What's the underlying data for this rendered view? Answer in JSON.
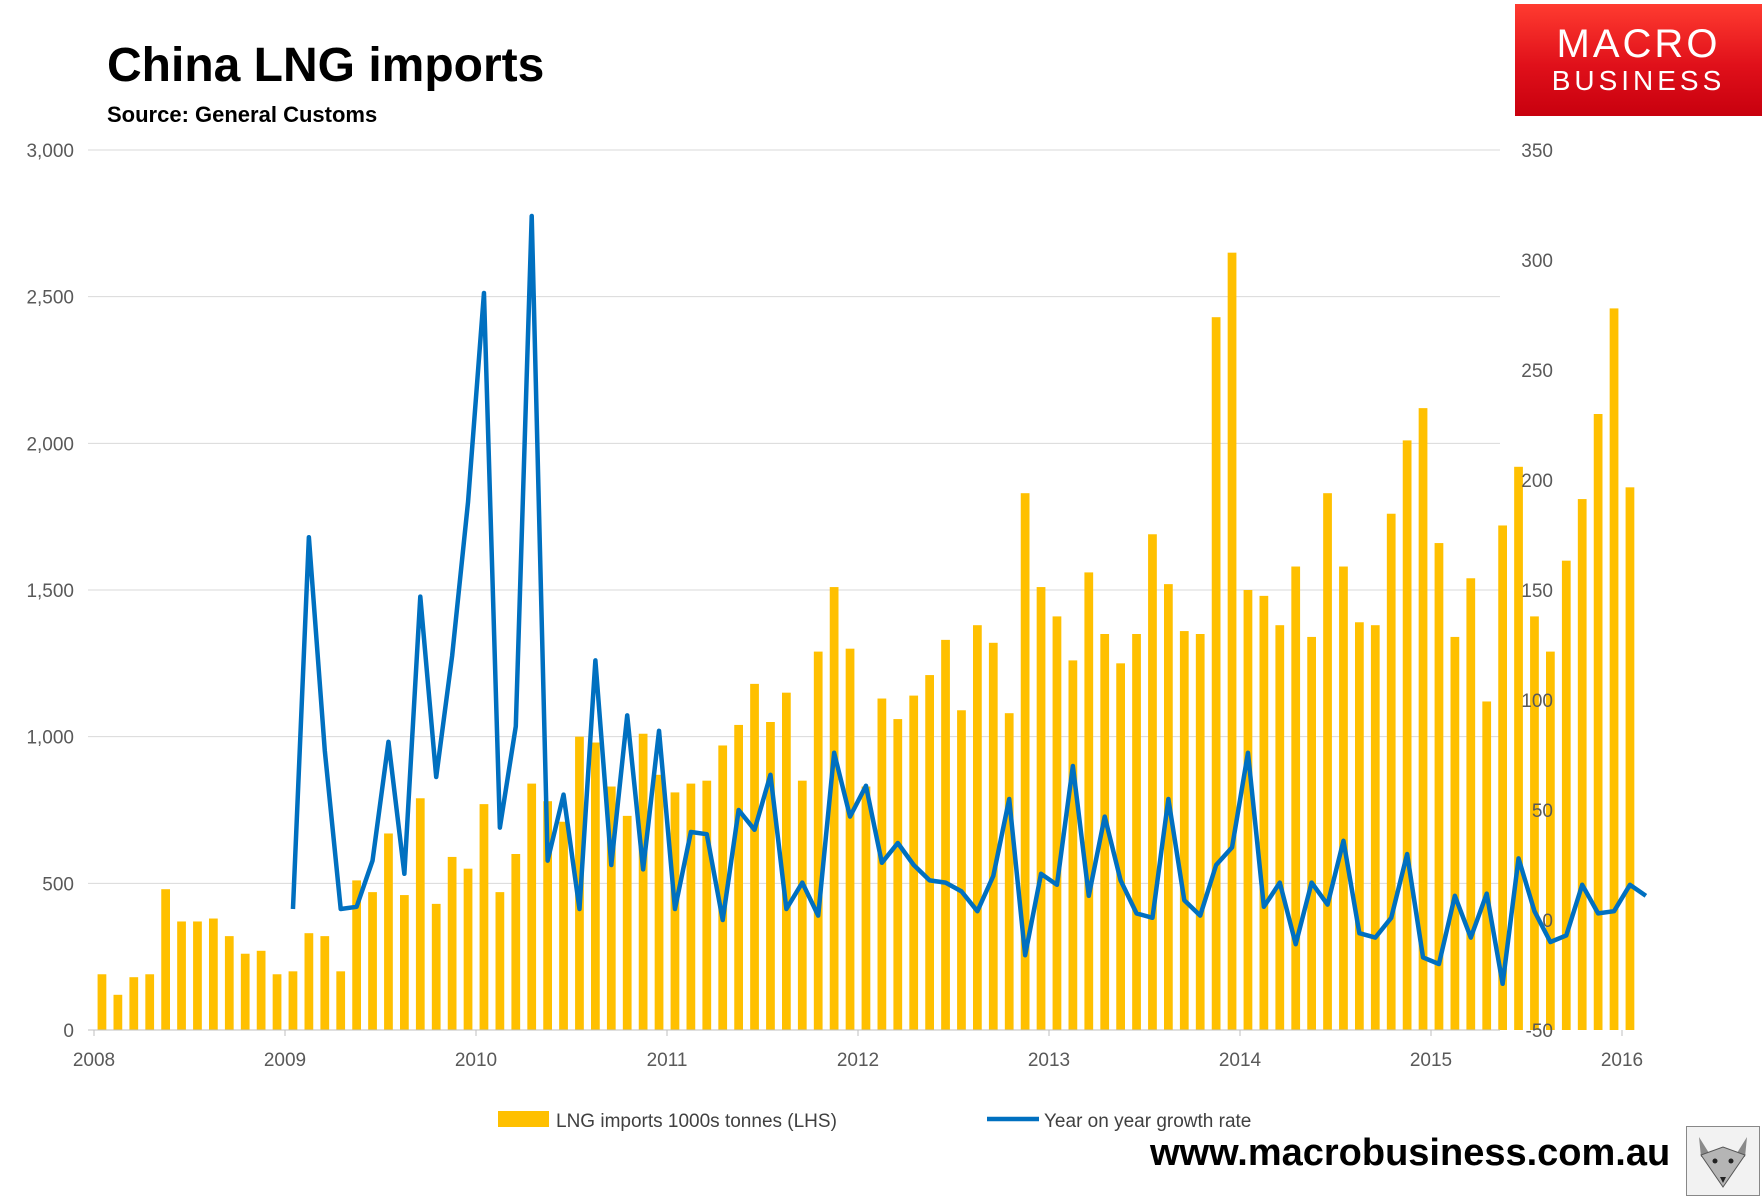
{
  "title": "China LNG imports",
  "subtitle": "Source: General Customs",
  "logo": {
    "line1": "MACRO",
    "line2": "BUSINESS"
  },
  "website": "www.macrobusiness.com.au",
  "mascot": "fox-icon",
  "colors": {
    "bars": "#FFC000",
    "line": "#0070C0",
    "logo_red": "#E0101A"
  },
  "chart_data": {
    "type": "bar",
    "title": "China LNG imports",
    "subtitle": "Source: General Customs",
    "x_tick_labels": [
      "2008",
      "2009",
      "2010",
      "2011",
      "2012",
      "2013",
      "2014",
      "2015",
      "2016"
    ],
    "y_left_tick_labels": [
      "0",
      "500",
      "1,000",
      "1,500",
      "2,000",
      "2,500",
      "3,000"
    ],
    "y_right_tick_labels": [
      "-50",
      "0",
      "50",
      "100",
      "150",
      "200",
      "250",
      "300",
      "350"
    ],
    "ylim_left": [
      0,
      3000
    ],
    "ylim_right": [
      -50,
      350
    ],
    "grid": true,
    "legend_position": "bottom",
    "series": [
      {
        "name": "LNG imports 1000s tonnes (LHS)",
        "type": "bar",
        "axis": "left",
        "start": "2008-01",
        "frequency": "monthly",
        "values": [
          190,
          120,
          180,
          190,
          480,
          370,
          370,
          380,
          320,
          260,
          270,
          190,
          200,
          330,
          320,
          200,
          510,
          470,
          670,
          460,
          790,
          430,
          590,
          550,
          770,
          470,
          600,
          840,
          780,
          710,
          1000,
          980,
          830,
          730,
          1010,
          870,
          810,
          840,
          850,
          970,
          1040,
          1180,
          1050,
          1150,
          850,
          1290,
          1510,
          1300,
          830,
          1130,
          1060,
          1140,
          1210,
          1330,
          1090,
          1380,
          1320,
          1080,
          1830,
          1510,
          1410,
          1260,
          1560,
          1350,
          1250,
          1350,
          1690,
          1520,
          1360,
          1350,
          2430,
          2650,
          1500,
          1480,
          1380,
          1580,
          1340,
          1830,
          1580,
          1390,
          1380,
          1760,
          2010,
          2120,
          1660,
          1340,
          1540,
          1120,
          1720,
          1920,
          1410,
          1290,
          1600,
          1810,
          2100,
          2460,
          1850
        ]
      },
      {
        "name": "Year on year growth rate",
        "type": "line",
        "axis": "right",
        "start": "2009-01",
        "frequency": "monthly",
        "values": [
          5,
          174,
          77,
          5,
          6,
          27,
          81,
          21,
          147,
          65,
          120,
          190,
          285,
          42,
          88,
          320,
          27,
          57,
          5,
          118,
          25,
          93,
          23,
          86,
          5,
          40,
          39,
          0,
          50,
          41,
          66,
          5,
          17,
          2,
          76,
          47,
          61,
          26,
          35,
          25,
          18,
          17,
          13,
          4,
          20,
          55,
          -16,
          21,
          16,
          70,
          11,
          47,
          18,
          3,
          1,
          55,
          9,
          2,
          25,
          33,
          76,
          6,
          17,
          -11,
          17,
          7,
          36,
          -6,
          -8,
          1,
          30,
          -17,
          -20,
          11,
          -8,
          12,
          -29,
          28,
          4,
          -10,
          -7,
          16,
          3,
          4,
          16,
          11
        ]
      }
    ]
  }
}
